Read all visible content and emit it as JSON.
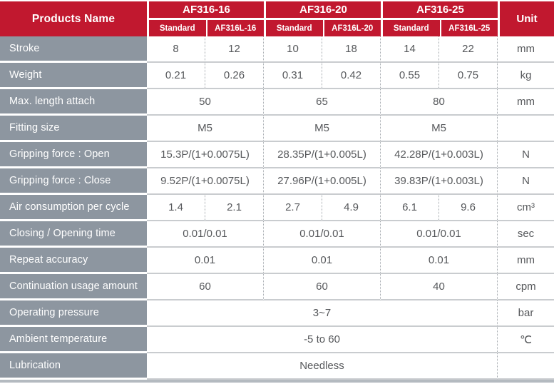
{
  "table": {
    "header": {
      "products_name": "Products Name",
      "unit_label": "Unit",
      "groups": [
        {
          "name": "AF316-16",
          "subcols": [
            "Standard",
            "AF316L-16"
          ]
        },
        {
          "name": "AF316-20",
          "subcols": [
            "Standard",
            "AF316L-20"
          ]
        },
        {
          "name": "AF316-25",
          "subcols": [
            "Standard",
            "AF316L-25"
          ]
        }
      ]
    },
    "rows": [
      {
        "label": "Stroke",
        "unit": "mm",
        "values": [
          "8",
          "12",
          "10",
          "18",
          "14",
          "22"
        ]
      },
      {
        "label": "Weight",
        "unit": "kg",
        "values": [
          "0.21",
          "0.26",
          "0.31",
          "0.42",
          "0.55",
          "0.75"
        ]
      },
      {
        "label": "Max. length attach",
        "unit": "mm",
        "values": [
          "50",
          "65",
          "80"
        ]
      },
      {
        "label": "Fitting size",
        "unit": "",
        "values": [
          "M5",
          "M5",
          "M5"
        ]
      },
      {
        "label": "Gripping force : Open",
        "unit": "N",
        "values": [
          "15.3P/(1+0.0075L)",
          "28.35P/(1+0.005L)",
          "42.28P/(1+0.003L)"
        ]
      },
      {
        "label": "Gripping force : Close",
        "unit": "N",
        "values": [
          "9.52P/(1+0.0075L)",
          "27.96P/(1+0.005L)",
          "39.83P/(1+0.003L)"
        ]
      },
      {
        "label": "Air consumption per cycle",
        "unit": "cm³",
        "values": [
          "1.4",
          "2.1",
          "2.7",
          "4.9",
          "6.1",
          "9.6"
        ]
      },
      {
        "label": "Closing / Opening time",
        "unit": "sec",
        "values": [
          "0.01/0.01",
          "0.01/0.01",
          "0.01/0.01"
        ]
      },
      {
        "label": "Repeat accuracy",
        "unit": "mm",
        "values": [
          "0.01",
          "0.01",
          "0.01"
        ]
      },
      {
        "label": "Continuation usage amount",
        "unit": "cpm",
        "values": [
          "60",
          "60",
          "40"
        ]
      },
      {
        "label": "Operating pressure",
        "unit": "bar",
        "values": [
          "3~7"
        ]
      },
      {
        "label": "Ambient temperature",
        "unit": "℃",
        "values": [
          "-5 to 60"
        ]
      },
      {
        "label": "Lubrication",
        "unit": "",
        "values": [
          "Needless"
        ]
      }
    ],
    "colors": {
      "header_red": "#c1182f",
      "label_gray": "#8d96a0",
      "value_text": "#56585b",
      "line_solid": "#c9cccf",
      "line_dotted": "#a3a8ad",
      "bottom_bar": "#b4bac0"
    }
  }
}
